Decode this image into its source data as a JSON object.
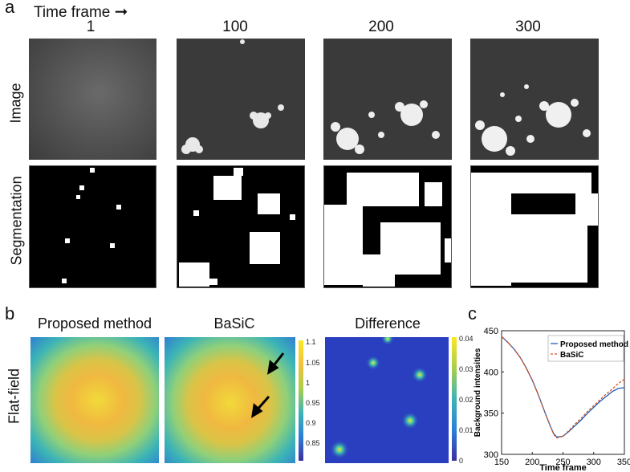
{
  "panel_a": {
    "letter": "a",
    "time_frame_label": "Time frame",
    "columns": [
      "1",
      "100",
      "200",
      "300"
    ],
    "row_labels": {
      "image": "Image",
      "segmentation": "Segmentation"
    }
  },
  "panel_b": {
    "letter": "b",
    "row_label": "Flat-field",
    "titles": [
      "Proposed method",
      "BaSiC",
      "Difference"
    ],
    "colorbar1_ticks": [
      "1.1",
      "1.05",
      "1",
      "0.95",
      "0.9",
      "0.85"
    ],
    "colorbar2_ticks": [
      "0.04",
      "0.03",
      "0.02",
      "0.01",
      "0"
    ]
  },
  "panel_c": {
    "letter": "c",
    "chart_data": {
      "type": "line",
      "xlabel": "Time frame",
      "ylabel": "Background intensities",
      "xlim": [
        150,
        350
      ],
      "ylim": [
        300,
        450
      ],
      "xticks": [
        "150",
        "200",
        "250",
        "300",
        "350"
      ],
      "yticks": [
        "450",
        "400",
        "350",
        "300"
      ],
      "legend_position": "top-right",
      "series": [
        {
          "name": "Proposed method",
          "color": "#1f5fbf",
          "style": "solid",
          "x": [
            150,
            160,
            170,
            180,
            190,
            200,
            210,
            220,
            230,
            235,
            240,
            250,
            260,
            270,
            280,
            290,
            300,
            310,
            320,
            330,
            340,
            350
          ],
          "y": [
            443,
            436,
            428,
            418,
            405,
            390,
            372,
            352,
            333,
            325,
            321,
            322,
            328,
            335,
            342,
            350,
            357,
            364,
            370,
            376,
            380,
            381
          ]
        },
        {
          "name": "BaSiC",
          "color": "#d9541e",
          "style": "dashed",
          "x": [
            150,
            160,
            170,
            180,
            190,
            200,
            210,
            220,
            230,
            235,
            240,
            250,
            260,
            270,
            280,
            290,
            300,
            310,
            320,
            330,
            340,
            350
          ],
          "y": [
            443,
            436,
            428,
            418,
            405,
            390,
            372,
            352,
            333,
            324,
            320,
            322,
            329,
            337,
            344,
            352,
            359,
            366,
            373,
            379,
            386,
            391
          ]
        }
      ]
    }
  }
}
